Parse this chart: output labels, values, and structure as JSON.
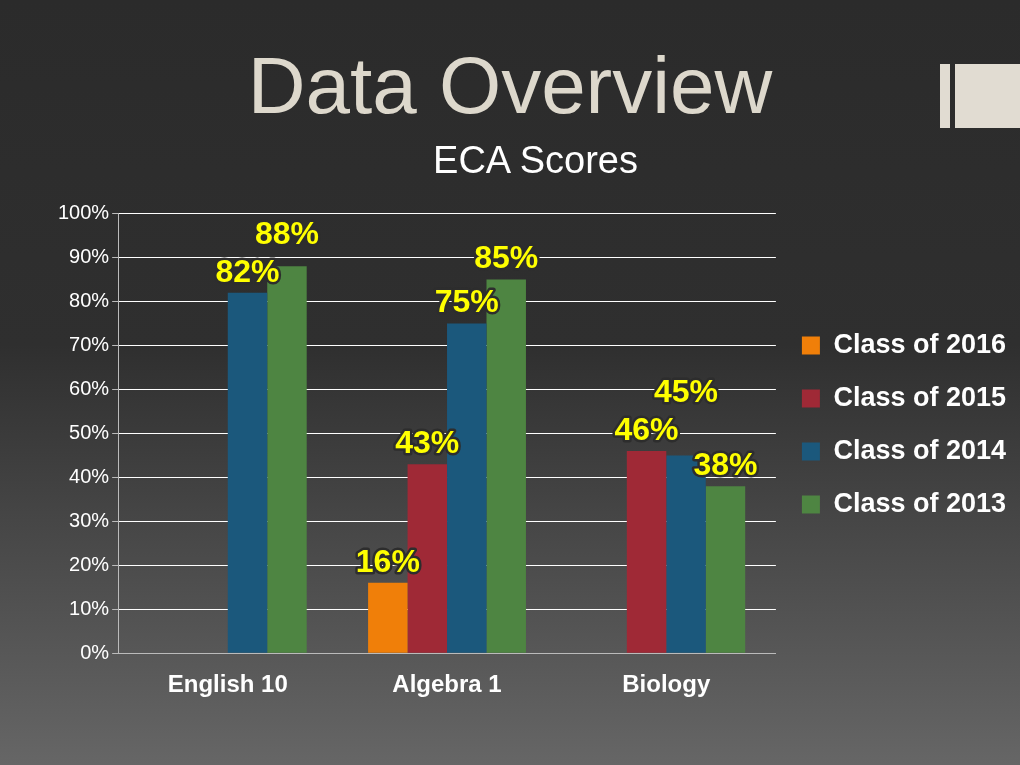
{
  "chart_data": {
    "type": "bar",
    "title": "Data Overview",
    "subtitle": "ECA Scores",
    "categories": [
      "English 10",
      "Algebra 1",
      "Biology"
    ],
    "series": [
      {
        "name": "Class of 2016",
        "color": "#f07f09",
        "values": [
          null,
          16,
          null
        ],
        "value_labels": [
          null,
          "16%",
          null
        ]
      },
      {
        "name": "Class of 2015",
        "color": "#9f2936",
        "values": [
          null,
          43,
          46
        ],
        "value_labels": [
          null,
          "43%",
          "46%"
        ]
      },
      {
        "name": "Class of 2014",
        "color": "#1b587c",
        "values": [
          82,
          75,
          45
        ],
        "value_labels": [
          "82%",
          "75%",
          "45%"
        ]
      },
      {
        "name": "Class of 2013",
        "color": "#4e8542",
        "values": [
          88,
          85,
          38
        ],
        "value_labels": [
          "88%",
          "85%",
          "38%"
        ]
      }
    ],
    "ylim": [
      0,
      100
    ],
    "yticks": [
      {
        "value": 0,
        "label": "0%"
      },
      {
        "value": 10,
        "label": "10%"
      },
      {
        "value": 20,
        "label": "20%"
      },
      {
        "value": 30,
        "label": "30%"
      },
      {
        "value": 40,
        "label": "40%"
      },
      {
        "value": 50,
        "label": "50%"
      },
      {
        "value": 60,
        "label": "60%"
      },
      {
        "value": 70,
        "label": "70%"
      },
      {
        "value": 80,
        "label": "80%"
      },
      {
        "value": 90,
        "label": "90%"
      },
      {
        "value": 100,
        "label": "100%"
      }
    ],
    "grid": "y",
    "legend": "right"
  }
}
